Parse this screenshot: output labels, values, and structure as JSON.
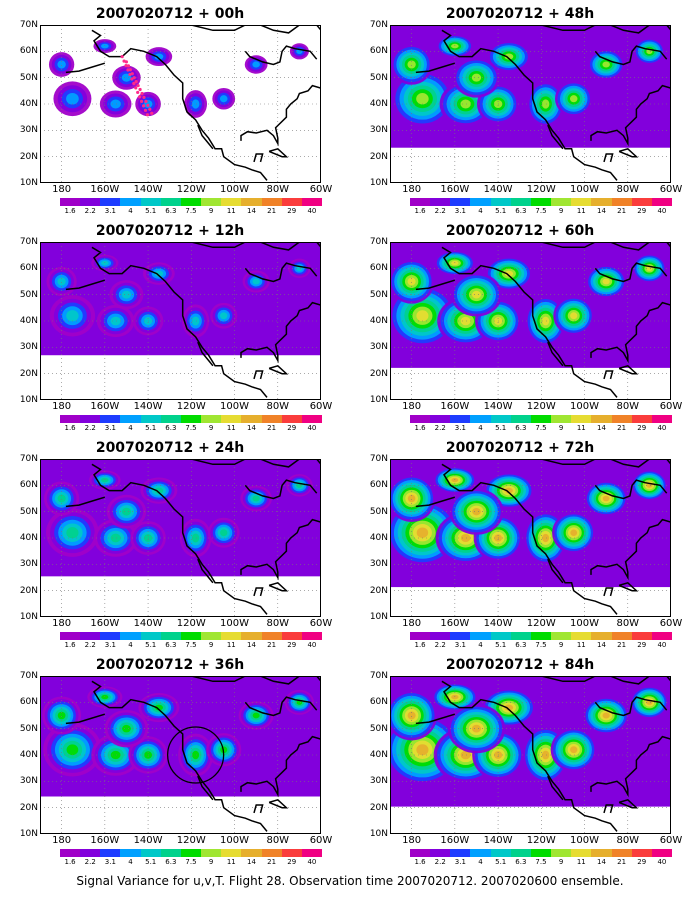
{
  "caption": "Signal Variance for u,v,T. Flight 28. Observation time 2007020712. 2007020600 ensemble.",
  "axes": {
    "lat_labels": [
      "70N",
      "60N",
      "50N",
      "40N",
      "30N",
      "20N",
      "10N"
    ],
    "lon_labels": [
      "180",
      "160W",
      "140W",
      "120W",
      "100W",
      "80W",
      "60W"
    ]
  },
  "colorbar": {
    "labels": [
      "1.6",
      "2.2",
      "3.1",
      "4",
      "5.1",
      "6.3",
      "7.5",
      "9",
      "11",
      "14",
      "21",
      "29",
      "40"
    ],
    "colors": [
      "#a000c8",
      "#8200dc",
      "#1e3cff",
      "#00a0ff",
      "#00c8c8",
      "#00d28c",
      "#00dc00",
      "#a0e632",
      "#e6dc32",
      "#e6af2d",
      "#f08228",
      "#fa3c3c",
      "#f00082"
    ]
  },
  "panels": [
    {
      "title": "2007020712 + 00h",
      "level": 0.12,
      "marker": "track"
    },
    {
      "title": "2007020712 + 48h",
      "level": 0.55,
      "marker": ""
    },
    {
      "title": "2007020712 + 12h",
      "level": 0.25,
      "marker": ""
    },
    {
      "title": "2007020712 + 60h",
      "level": 0.65,
      "marker": ""
    },
    {
      "title": "2007020712 + 24h",
      "level": 0.38,
      "marker": ""
    },
    {
      "title": "2007020712 + 72h",
      "level": 0.72,
      "marker": ""
    },
    {
      "title": "2007020712 + 36h",
      "level": 0.48,
      "marker": "circle"
    },
    {
      "title": "2007020712 + 84h",
      "level": 0.8,
      "marker": ""
    }
  ]
}
